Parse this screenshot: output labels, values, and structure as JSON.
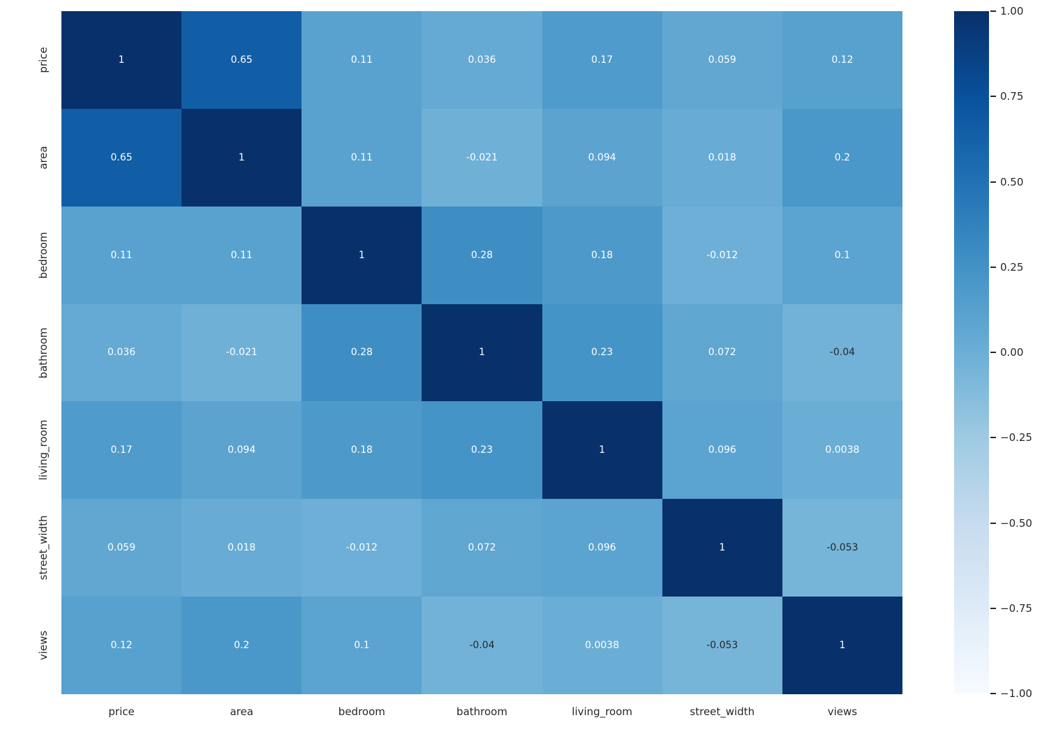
{
  "chart_data": {
    "type": "heatmap",
    "title": "",
    "variables": [
      "price",
      "area",
      "bedroom",
      "bathroom",
      "living_room",
      "street_width",
      "views"
    ],
    "matrix": [
      [
        1,
        0.65,
        0.11,
        0.036,
        0.17,
        0.059,
        0.12
      ],
      [
        0.65,
        1,
        0.11,
        -0.021,
        0.094,
        0.018,
        0.2
      ],
      [
        0.11,
        0.11,
        1,
        0.28,
        0.18,
        -0.012,
        0.1
      ],
      [
        0.036,
        -0.021,
        0.28,
        1,
        0.23,
        0.072,
        -0.04
      ],
      [
        0.17,
        0.094,
        0.18,
        0.23,
        1,
        0.096,
        0.0038
      ],
      [
        0.059,
        0.018,
        -0.012,
        0.072,
        0.096,
        1,
        -0.053
      ],
      [
        0.12,
        0.2,
        0.1,
        -0.04,
        0.0038,
        -0.053,
        1
      ]
    ],
    "vmin": -1,
    "vmax": 1,
    "colormap": {
      "name": "Blues",
      "stops_light_to_dark": [
        "#f7fbff",
        "#deebf7",
        "#c6dbef",
        "#9ecae1",
        "#6baed6",
        "#4292c6",
        "#2171b5",
        "#08519c",
        "#08306b"
      ]
    },
    "colorbar": {
      "tick_labels": [
        "1.00",
        "0.75",
        "0.50",
        "0.25",
        "0.00",
        "−0.25",
        "−0.50",
        "−0.75",
        "−1.00"
      ]
    },
    "style": {
      "annotation_color_light": "#ffffff",
      "annotation_color_dark": "#262626",
      "tick_label_color": "#262626",
      "background": "#ffffff"
    },
    "layout_hints": {
      "legend_position": "right-colorbar",
      "grid": false
    }
  }
}
